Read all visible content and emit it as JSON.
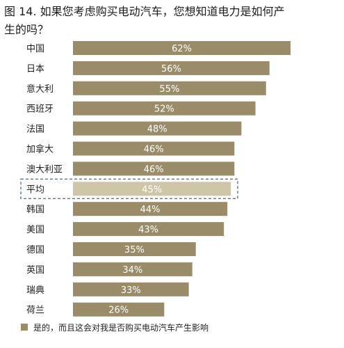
{
  "title": {
    "line1": "图 14. 如果您考虑购买电动汽车，您想知道电力是如何产",
    "line2": "生的吗？"
  },
  "colors": {
    "bar": "#9a8c68",
    "bar_highlight": "#cfc6aa",
    "highlight_border": "#4f7f86",
    "value_text": "#ffffff"
  },
  "legend": {
    "label": "是的，而且这会对我是否购买电动汽车产生影响"
  },
  "chart_data": {
    "type": "bar",
    "orientation": "horizontal",
    "categories": [
      "中国",
      "日本",
      "意大利",
      "西班牙",
      "法国",
      "加拿大",
      "澳大利亚",
      "平均",
      "韩国",
      "美国",
      "德国",
      "英国",
      "瑞典",
      "荷兰"
    ],
    "values": [
      62,
      56,
      55,
      52,
      48,
      46,
      46,
      45,
      44,
      43,
      35,
      34,
      33,
      26
    ],
    "value_labels": [
      "62%",
      "56%",
      "55%",
      "52%",
      "48%",
      "46%",
      "46%",
      "45%",
      "44%",
      "43%",
      "35%",
      "34%",
      "33%",
      "26%"
    ],
    "series": [
      {
        "name": "是的，而且这会对我是否购买电动汽车产生影响",
        "values": [
          62,
          56,
          55,
          52,
          48,
          46,
          46,
          45,
          44,
          43,
          35,
          34,
          33,
          26
        ]
      }
    ],
    "highlight_category": "平均",
    "xlim": [
      0,
      70
    ],
    "grid": false,
    "legend_position": "bottom-left"
  }
}
